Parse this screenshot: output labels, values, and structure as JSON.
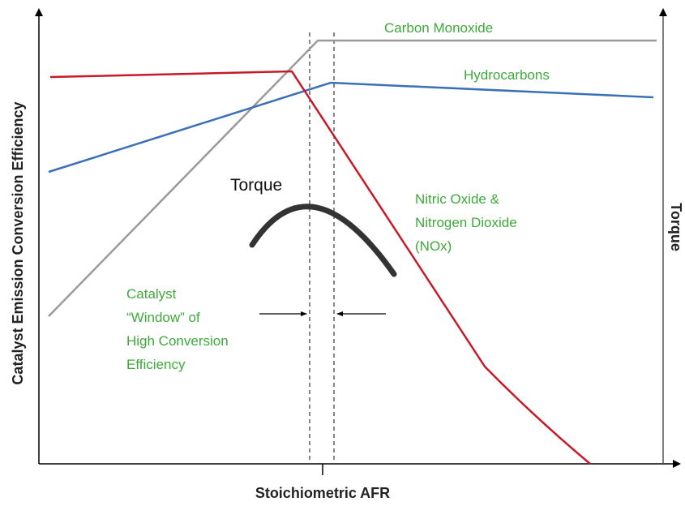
{
  "axes": {
    "y_label": "Catalyst Emission Conversion Efficiency",
    "y2_label": "Torque",
    "x_label": "Stoichiometric AFR"
  },
  "curves": {
    "carbon_monoxide": "Carbon Monoxide",
    "hydrocarbons": "Hydrocarbons",
    "torque": "Torque",
    "nox": [
      "Nitric Oxide &",
      "Nitrogen Dioxide",
      "(NOx)"
    ]
  },
  "annotation": [
    "Catalyst",
    "“Window” of",
    "High Conversion",
    "Efficiency"
  ]
}
